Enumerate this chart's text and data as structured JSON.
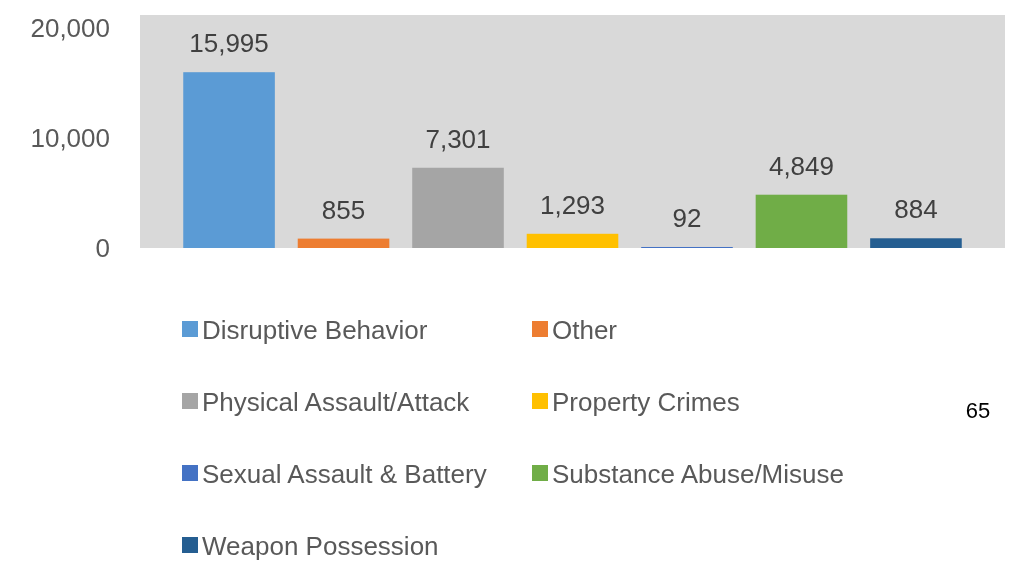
{
  "chart_data": {
    "type": "bar",
    "categories": [
      null
    ],
    "series": [
      {
        "name": "Disruptive Behavior",
        "color": "#5b9bd5",
        "values": [
          15995
        ],
        "value_labels": [
          "15,995"
        ]
      },
      {
        "name": "Other",
        "color": "#ed7d31",
        "values": [
          855
        ],
        "value_labels": [
          "855"
        ]
      },
      {
        "name": "Physical Assault/Attack",
        "color": "#a5a5a5",
        "values": [
          7301
        ],
        "value_labels": [
          "7,301"
        ]
      },
      {
        "name": "Property Crimes",
        "color": "#ffc000",
        "values": [
          1293
        ],
        "value_labels": [
          "1,293"
        ]
      },
      {
        "name": "Sexual Assault & Battery",
        "color": "#4472c4",
        "values": [
          92
        ],
        "value_labels": [
          "92"
        ]
      },
      {
        "name": "Substance Abuse/Misuse",
        "color": "#70ad47",
        "values": [
          4849
        ],
        "value_labels": [
          "4,849"
        ]
      },
      {
        "name": "Weapon Possession",
        "color": "#255e91",
        "values": [
          884
        ],
        "value_labels": [
          "884"
        ]
      }
    ],
    "ylim": [
      0,
      21200
    ],
    "yticks": [
      {
        "value": 0,
        "label": "0"
      },
      {
        "value": 10000,
        "label": "10,000"
      },
      {
        "value": 20000,
        "label": "20,000"
      }
    ],
    "legend": "bottom",
    "grid": false,
    "annotations": [
      "65"
    ]
  }
}
